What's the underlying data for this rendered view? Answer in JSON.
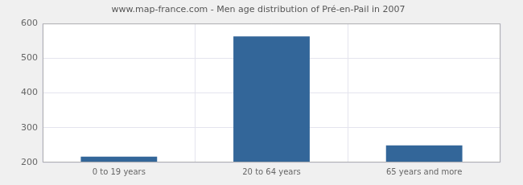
{
  "chart_data": {
    "type": "bar",
    "title": "www.map-france.com - Men age distribution of Pré-en-Pail in 2007",
    "categories": [
      "0 to 19 years",
      "20 to 64 years",
      "65 years and more"
    ],
    "values": [
      217,
      563,
      249
    ],
    "color": "#336699",
    "ylim": [
      200,
      600
    ],
    "yticks": [
      200,
      300,
      400,
      500,
      600
    ],
    "grid": true
  }
}
